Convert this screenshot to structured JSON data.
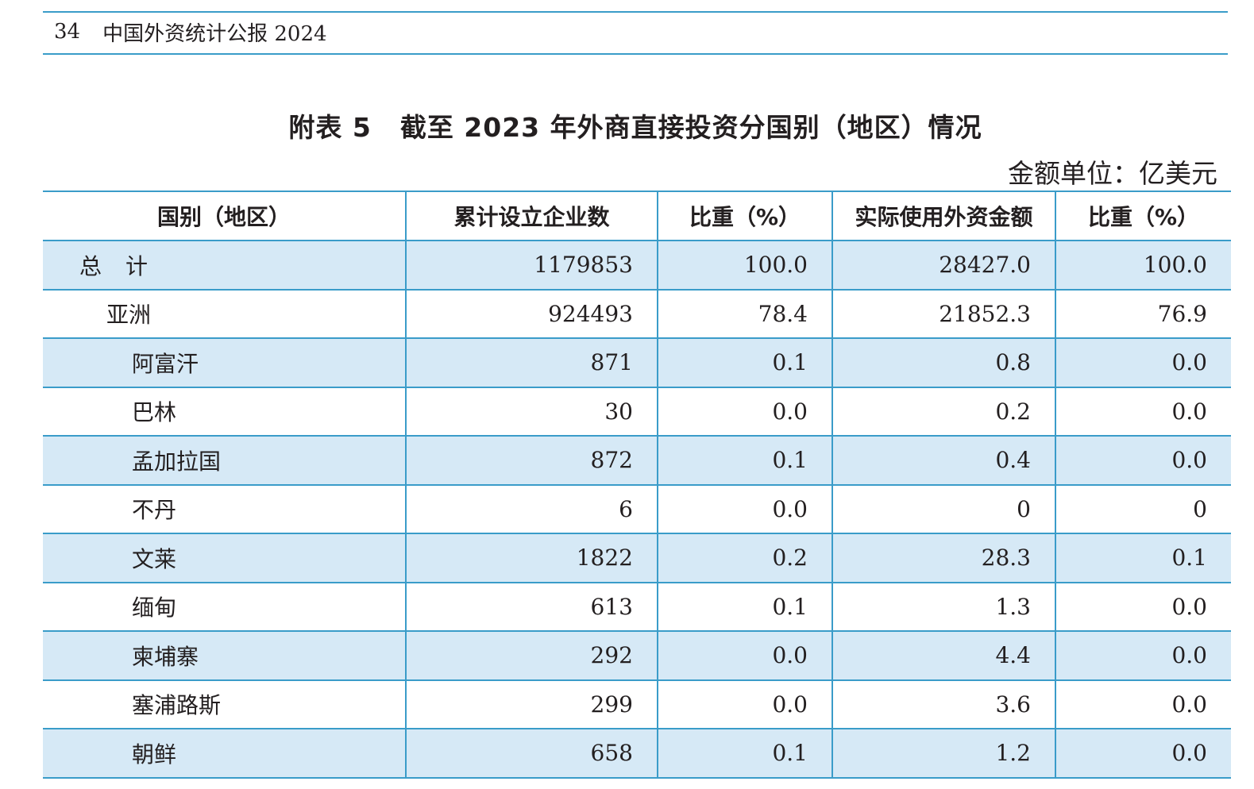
{
  "running_head": {
    "page_number": "34",
    "publication": "中国外资统计公报 2024"
  },
  "table": {
    "title_number": "附表 5",
    "title": "截至 2023 年外商直接投资分国别（地区）情况",
    "unit": "金额单位：亿美元",
    "columns": [
      "国别（地区）",
      "累计设立企业数",
      "比重（%）",
      "实际使用外资金额",
      "比重（%）"
    ],
    "rows": [
      {
        "name": "总计",
        "level": 0,
        "enterprises": "1179853",
        "share_enterprises": "100.0",
        "amount": "28427.0",
        "share_amount": "100.0"
      },
      {
        "name": "亚洲",
        "level": 1,
        "enterprises": "924493",
        "share_enterprises": "78.4",
        "amount": "21852.3",
        "share_amount": "76.9"
      },
      {
        "name": "阿富汗",
        "level": 2,
        "enterprises": "871",
        "share_enterprises": "0.1",
        "amount": "0.8",
        "share_amount": "0.0"
      },
      {
        "name": "巴林",
        "level": 2,
        "enterprises": "30",
        "share_enterprises": "0.0",
        "amount": "0.2",
        "share_amount": "0.0"
      },
      {
        "name": "孟加拉国",
        "level": 2,
        "enterprises": "872",
        "share_enterprises": "0.1",
        "amount": "0.4",
        "share_amount": "0.0"
      },
      {
        "name": "不丹",
        "level": 2,
        "enterprises": "6",
        "share_enterprises": "0.0",
        "amount": "0",
        "share_amount": "0"
      },
      {
        "name": "文莱",
        "level": 2,
        "enterprises": "1822",
        "share_enterprises": "0.2",
        "amount": "28.3",
        "share_amount": "0.1"
      },
      {
        "name": "缅甸",
        "level": 2,
        "enterprises": "613",
        "share_enterprises": "0.1",
        "amount": "1.3",
        "share_amount": "0.0"
      },
      {
        "name": "柬埔寨",
        "level": 2,
        "enterprises": "292",
        "share_enterprises": "0.0",
        "amount": "4.4",
        "share_amount": "0.0"
      },
      {
        "name": "塞浦路斯",
        "level": 2,
        "enterprises": "299",
        "share_enterprises": "0.0",
        "amount": "3.6",
        "share_amount": "0.0"
      },
      {
        "name": "朝鲜",
        "level": 2,
        "enterprises": "658",
        "share_enterprises": "0.1",
        "amount": "1.2",
        "share_amount": "0.0"
      }
    ]
  },
  "colors": {
    "rule": "#3a9cc9",
    "row_shade": "#d6e9f6",
    "text": "#231f20"
  }
}
